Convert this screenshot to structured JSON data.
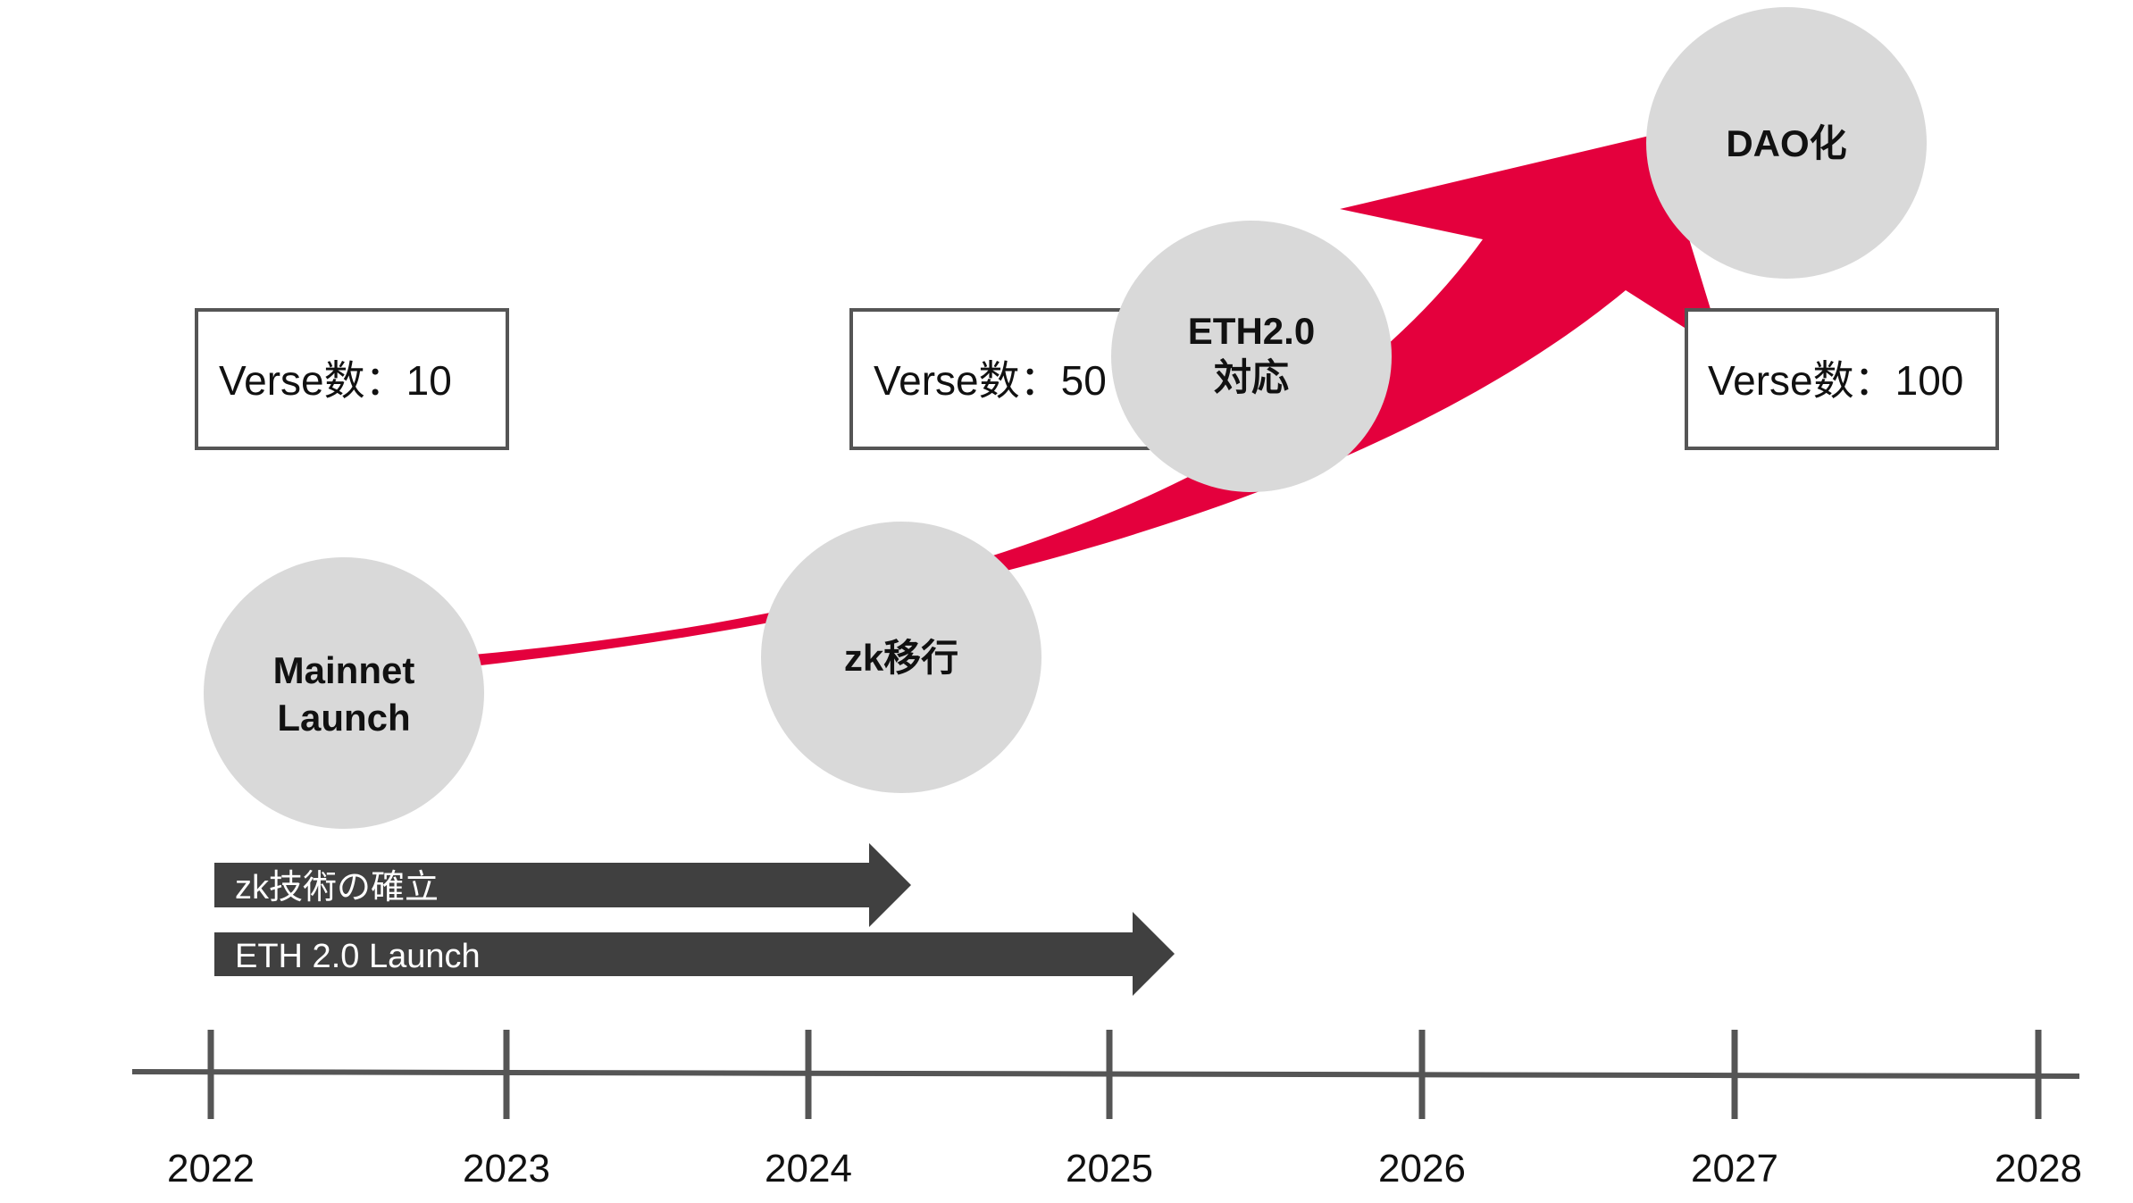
{
  "milestones": [
    {
      "id": "mainnet",
      "lines": [
        "Mainnet",
        "Launch"
      ]
    },
    {
      "id": "zk",
      "lines": [
        "zk移行"
      ]
    },
    {
      "id": "eth",
      "lines": [
        "ETH2.0",
        "対応"
      ]
    },
    {
      "id": "dao",
      "lines": [
        "DAO化"
      ]
    }
  ],
  "verse_boxes": [
    {
      "label": "Verse数：10"
    },
    {
      "label": "Verse数：50"
    },
    {
      "label": "Verse数：100"
    }
  ],
  "bars": [
    {
      "label": "zk技術の確立"
    },
    {
      "label": "ETH 2.0 Launch"
    }
  ],
  "timeline": {
    "years": [
      "2022",
      "2023",
      "2024",
      "2025",
      "2026",
      "2027",
      "2028"
    ]
  },
  "colors": {
    "growth_arrow": "#e4003d",
    "circle_fill": "#d9d9d9",
    "bar_fill": "#404040",
    "box_stroke": "#555555",
    "axis": "#555555"
  }
}
